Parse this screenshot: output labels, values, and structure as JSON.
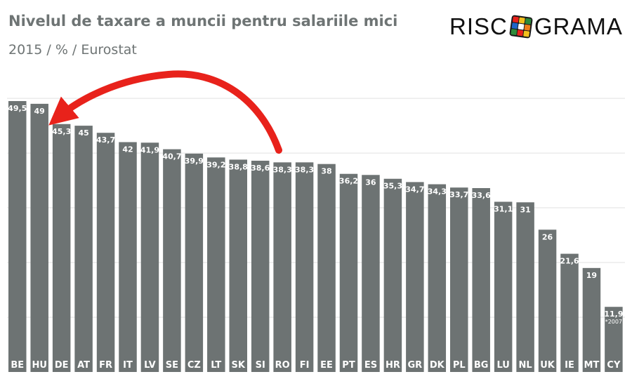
{
  "header": {
    "title": "Nivelul de taxare a muncii pentru salariile mici",
    "subtitle": "2015 / % / Eurostat"
  },
  "logo": {
    "text_left": "RISC",
    "text_right": "GRAMA",
    "icon": "rubik-cube-icon"
  },
  "colors": {
    "bar": "#6d7373",
    "arrow": "#e8221b",
    "title": "#6e7474"
  },
  "chart_data": {
    "type": "bar",
    "categories": [
      "BE",
      "HU",
      "DE",
      "AT",
      "FR",
      "IT",
      "LV",
      "SE",
      "CZ",
      "LT",
      "SK",
      "SI",
      "RO",
      "FI",
      "EE",
      "PT",
      "ES",
      "HR",
      "GR",
      "DK",
      "PL",
      "BG",
      "LU",
      "NL",
      "UK",
      "IE",
      "MT",
      "CY"
    ],
    "values": [
      49.5,
      49,
      45.3,
      45,
      43.7,
      42,
      41.9,
      40.7,
      39.9,
      39.2,
      38.8,
      38.6,
      38.3,
      38.3,
      38,
      36.2,
      36,
      35.3,
      34.7,
      34.3,
      33.7,
      33.6,
      31.1,
      31,
      26,
      21.6,
      19,
      11.9
    ],
    "value_labels": [
      "49,5",
      "49",
      "45,3",
      "45",
      "43,7",
      "42",
      "41,9",
      "40,7",
      "39,9",
      "39,2",
      "38,8",
      "38,6",
      "38,3",
      "38,3",
      "38",
      "36,2",
      "36",
      "35,3",
      "34,7",
      "34,3",
      "33,7",
      "33,6",
      "31,1",
      "31",
      "26",
      "21,6",
      "19",
      "11,9"
    ],
    "notes": {
      "CY": "*2007"
    },
    "title": "Nivelul de taxare a muncii pentru salariile mici",
    "subtitle": "2015 / % / Eurostat",
    "xlabel": "",
    "ylabel": "",
    "ylim": [
      0,
      55
    ],
    "grid": true,
    "legend": "none",
    "annotation": {
      "type": "arrow",
      "from": "RO",
      "to": "DE"
    }
  }
}
